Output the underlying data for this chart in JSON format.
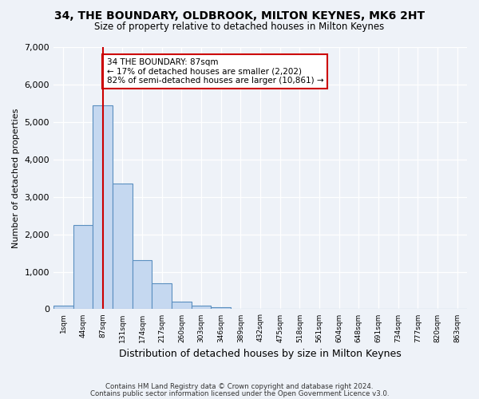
{
  "title1": "34, THE BOUNDARY, OLDBROOK, MILTON KEYNES, MK6 2HT",
  "title2": "Size of property relative to detached houses in Milton Keynes",
  "xlabel": "Distribution of detached houses by size in Milton Keynes",
  "ylabel": "Number of detached properties",
  "bin_labels": [
    "1sqm",
    "44sqm",
    "87sqm",
    "131sqm",
    "174sqm",
    "217sqm",
    "260sqm",
    "303sqm",
    "346sqm",
    "389sqm",
    "432sqm",
    "475sqm",
    "518sqm",
    "561sqm",
    "604sqm",
    "648sqm",
    "691sqm",
    "734sqm",
    "777sqm",
    "820sqm",
    "863sqm"
  ],
  "bar_values": [
    100,
    2250,
    5450,
    3350,
    1300,
    700,
    200,
    100,
    50,
    10,
    5,
    2,
    1,
    0,
    0,
    0,
    0,
    0,
    0,
    0,
    0
  ],
  "bar_color": "#c5d8f0",
  "bar_edge_color": "#5a8fc0",
  "red_line_index": 2,
  "annotation_text": "34 THE BOUNDARY: 87sqm\n← 17% of detached houses are smaller (2,202)\n82% of semi-detached houses are larger (10,861) →",
  "annotation_box_color": "#ffffff",
  "annotation_box_edge": "#cc0000",
  "ylim": [
    0,
    7000
  ],
  "yticks": [
    0,
    1000,
    2000,
    3000,
    4000,
    5000,
    6000,
    7000
  ],
  "footer1": "Contains HM Land Registry data © Crown copyright and database right 2024.",
  "footer2": "Contains public sector information licensed under the Open Government Licence v3.0.",
  "background_color": "#eef2f8",
  "grid_color": "#ffffff"
}
